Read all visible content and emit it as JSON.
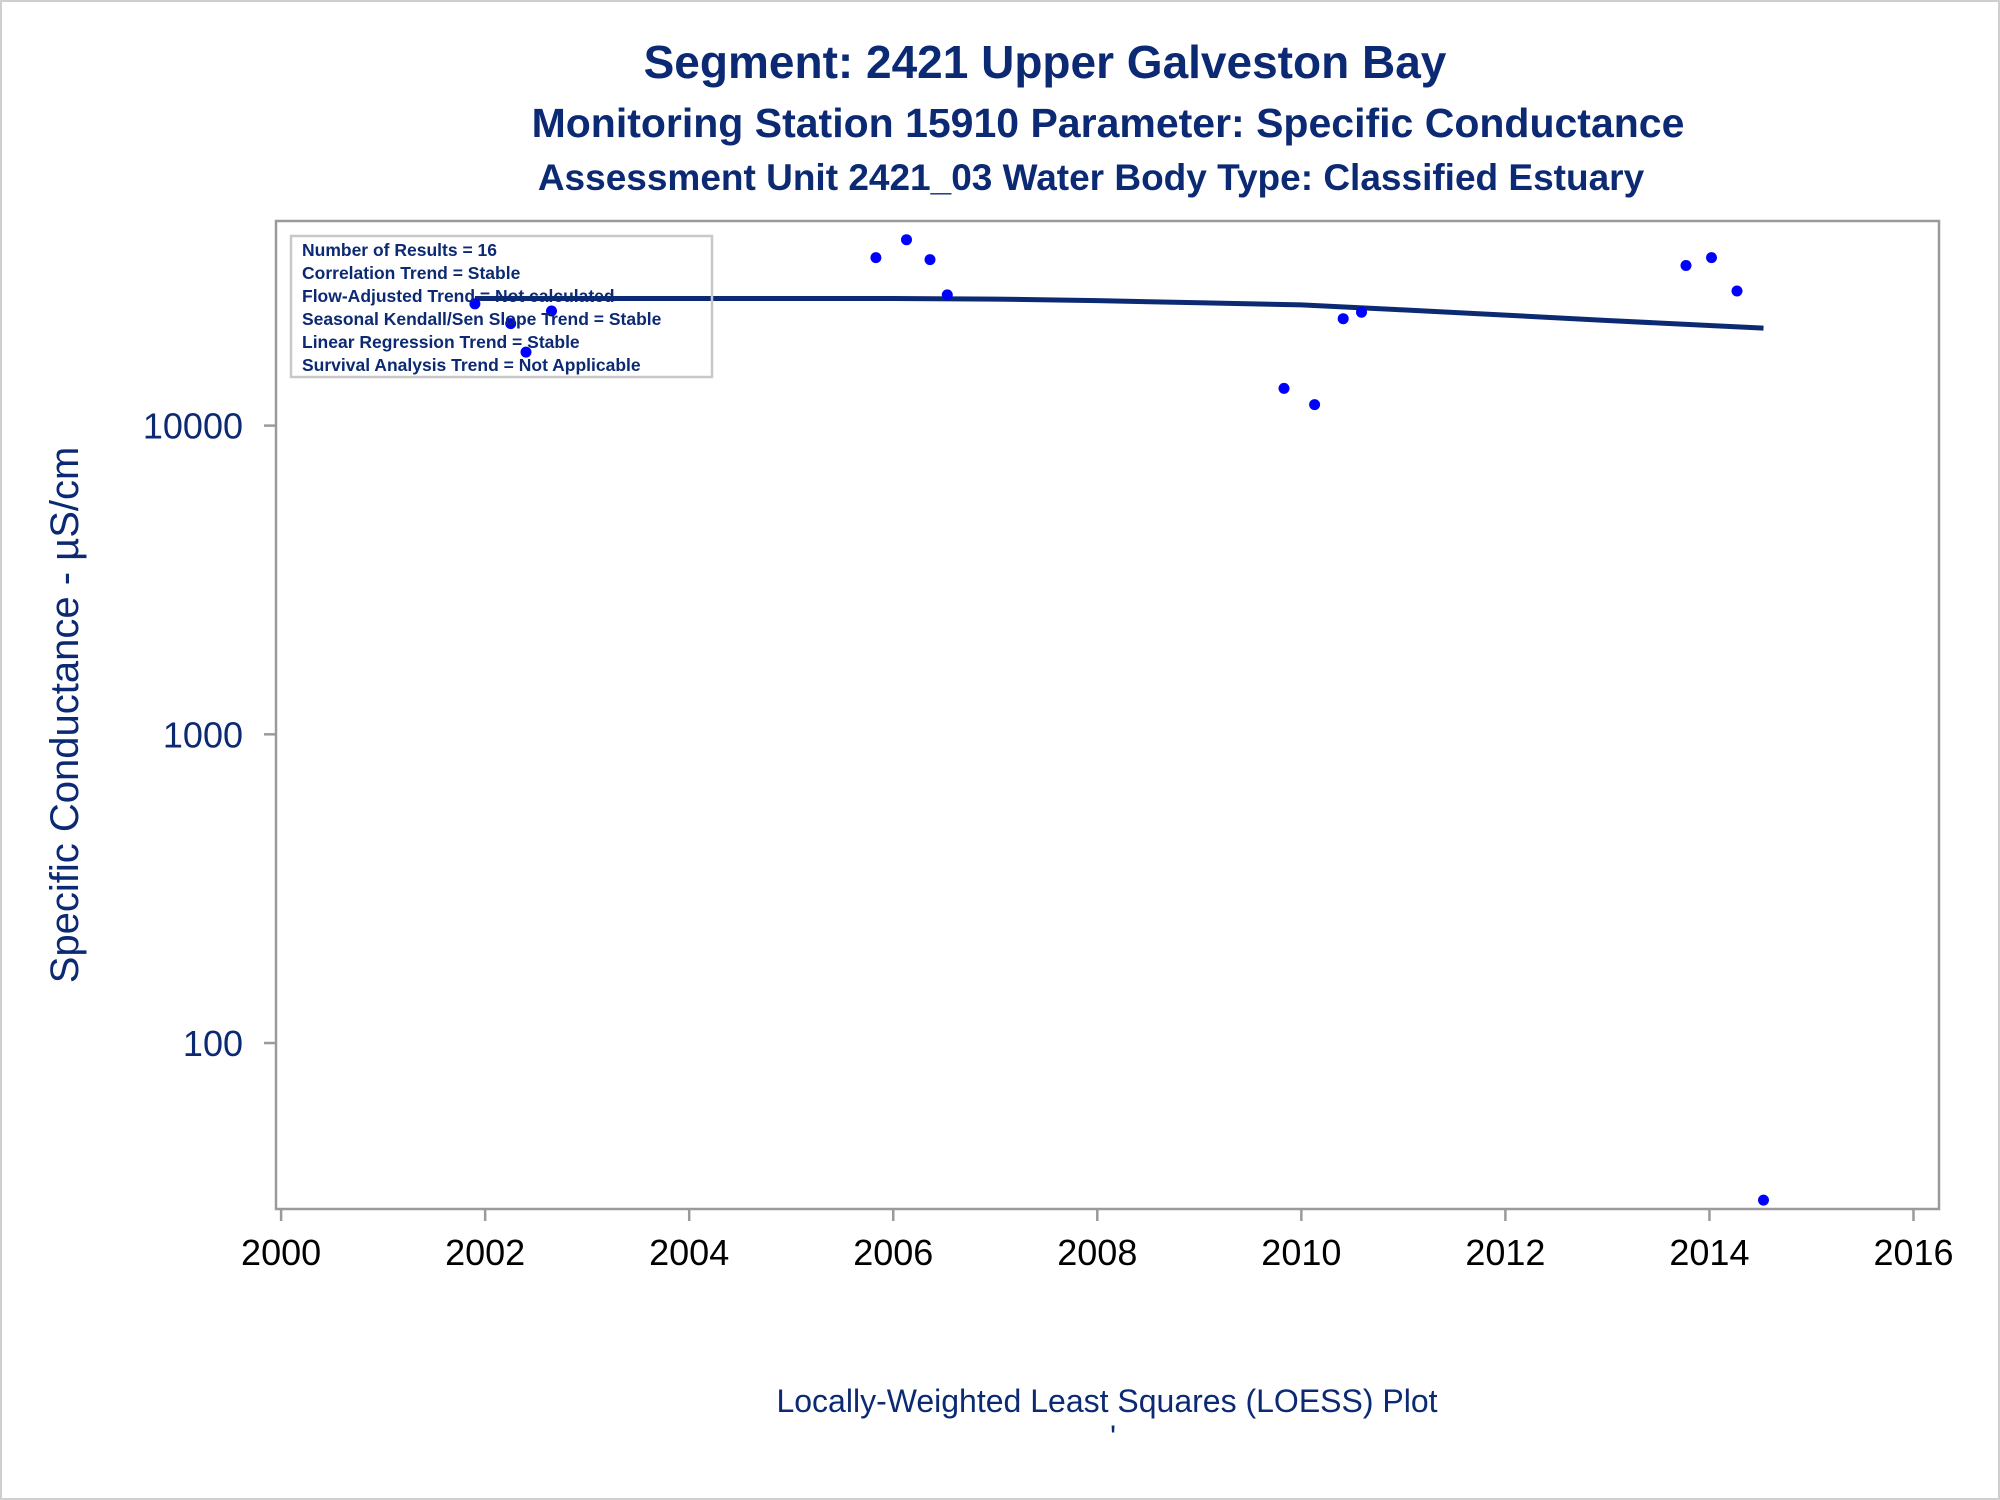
{
  "chart_data": {
    "type": "scatter",
    "title": "Segment: 2421  Upper Galveston Bay",
    "subtitle": "Monitoring Station 15910 Parameter: Specific Conductance",
    "subtitle2": "Assessment Unit 2421_03   Water Body Type: Classified Estuary",
    "xlabel": "",
    "ylabel": "Specific Conductance -  µS/cm",
    "footnote": "Locally-Weighted Least Squares (LOESS) Plot",
    "footnote_mark": "'",
    "x_scale": "linear",
    "y_scale": "log",
    "xlim": [
      1999.95,
      2016.25
    ],
    "ylim": [
      29,
      46000
    ],
    "x_ticks": [
      "2000",
      "2002",
      "2004",
      "2006",
      "2008",
      "2010",
      "2012",
      "2014",
      "2016"
    ],
    "y_ticks": [
      "100",
      "1000",
      "10000"
    ],
    "grid": false,
    "legend": "none",
    "stats_box": [
      "Number of Results = 16",
      "Correlation Trend = Stable",
      "Flow-Adjusted Trend = Not calculated",
      "Seasonal Kendall/Sen Slope Trend = Stable",
      "Linear Regression Trend = Stable",
      "Survival Analysis Trend = Not Applicable"
    ],
    "series": [
      {
        "type": "scatter",
        "color": "#0000ff",
        "points": [
          {
            "x": 2001.9,
            "y": 24800
          },
          {
            "x": 2002.25,
            "y": 21400
          },
          {
            "x": 2002.4,
            "y": 17300
          },
          {
            "x": 2002.65,
            "y": 23500
          },
          {
            "x": 2005.83,
            "y": 35000
          },
          {
            "x": 2006.13,
            "y": 40000
          },
          {
            "x": 2006.36,
            "y": 34500
          },
          {
            "x": 2006.53,
            "y": 26500
          },
          {
            "x": 2009.83,
            "y": 13200
          },
          {
            "x": 2010.13,
            "y": 11700
          },
          {
            "x": 2010.41,
            "y": 22200
          },
          {
            "x": 2010.59,
            "y": 23300
          },
          {
            "x": 2013.77,
            "y": 33000
          },
          {
            "x": 2014.02,
            "y": 35000
          },
          {
            "x": 2014.27,
            "y": 27300
          },
          {
            "x": 2014.53,
            "y": 31
          }
        ]
      },
      {
        "type": "line",
        "color": "#0c2a73",
        "points": [
          {
            "x": 2001.9,
            "y": 25800
          },
          {
            "x": 2003.0,
            "y": 25800
          },
          {
            "x": 2004.0,
            "y": 25800
          },
          {
            "x": 2005.0,
            "y": 25800
          },
          {
            "x": 2006.0,
            "y": 25800
          },
          {
            "x": 2007.0,
            "y": 25700
          },
          {
            "x": 2008.0,
            "y": 25400
          },
          {
            "x": 2009.0,
            "y": 25000
          },
          {
            "x": 2010.0,
            "y": 24600
          },
          {
            "x": 2011.0,
            "y": 23700
          },
          {
            "x": 2012.0,
            "y": 22800
          },
          {
            "x": 2013.0,
            "y": 21900
          },
          {
            "x": 2014.0,
            "y": 21100
          },
          {
            "x": 2014.53,
            "y": 20700
          }
        ]
      }
    ]
  },
  "colors": {
    "text": "#0c2a73",
    "points": "#0000ff",
    "loess_line": "#0c2a73",
    "frame": "#9a9a9a",
    "tick_text_x": "#000000",
    "tick_text_y": "#0c2a73"
  }
}
